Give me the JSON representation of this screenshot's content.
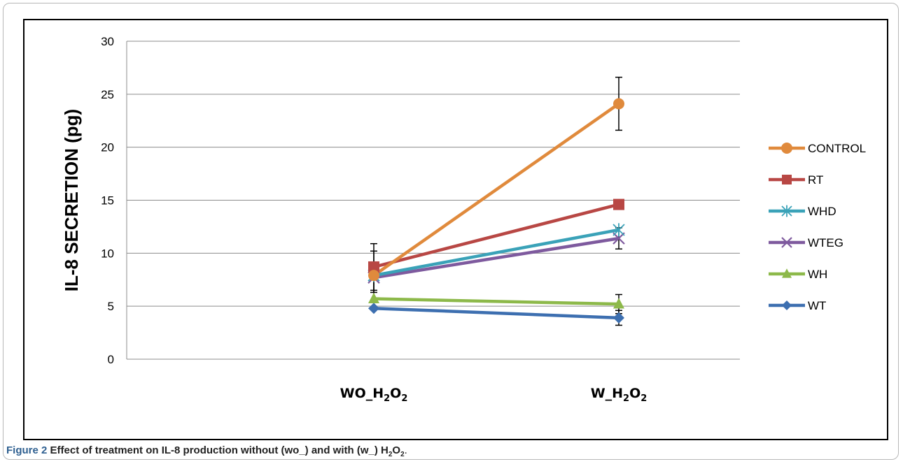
{
  "chart_data": {
    "type": "line",
    "title": "",
    "xlabel": "",
    "ylabel": "IL-8 SECRETION (pg)",
    "categories": [
      {
        "base": "WO_H",
        "sub1": "2",
        "mid": "O",
        "sub2": "2"
      },
      {
        "base": "W_H",
        "sub1": "2",
        "mid": "O",
        "sub2": "2"
      }
    ],
    "ylim": [
      0,
      30
    ],
    "yticks": [
      0,
      5,
      10,
      15,
      20,
      25,
      30
    ],
    "grid": "horizontal",
    "legend_position": "right",
    "series": [
      {
        "name": "CONTROL",
        "color": "#e08a3c",
        "marker": "circle",
        "values": [
          7.9,
          24.1
        ],
        "error": [
          2.3,
          2.5
        ]
      },
      {
        "name": "RT",
        "color": "#b84744",
        "marker": "square",
        "values": [
          8.7,
          14.6
        ],
        "error": [
          2.2,
          0.0
        ]
      },
      {
        "name": "WHD",
        "color": "#3aa2b8",
        "marker": "asterisk",
        "values": [
          7.9,
          12.2
        ],
        "error": [
          0.0,
          0.0
        ]
      },
      {
        "name": "WTEG",
        "color": "#7e5a9e",
        "marker": "x",
        "values": [
          7.7,
          11.4
        ],
        "error": [
          1.4,
          1.0
        ]
      },
      {
        "name": "WH",
        "color": "#8db94a",
        "marker": "triangle",
        "values": [
          5.7,
          5.2
        ],
        "error": [
          0.0,
          0.9
        ]
      },
      {
        "name": "WT",
        "color": "#3d6fb0",
        "marker": "diamond",
        "values": [
          4.8,
          3.9
        ],
        "error": [
          0.0,
          0.7
        ]
      }
    ]
  },
  "caption": {
    "label": "Figure 2",
    "text_before": "Effect of treatment on IL-8 production without (wo_) and with (w_) H",
    "sub1": "2",
    "mid": "O",
    "sub2": "2",
    "text_after": "."
  }
}
